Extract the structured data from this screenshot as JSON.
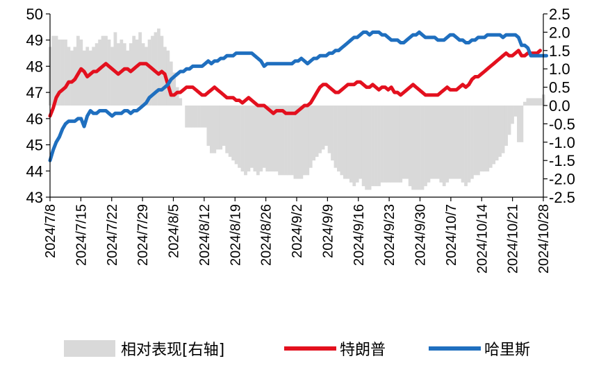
{
  "chart_data": {
    "type": "bar+line",
    "colors": {
      "relative": "#d9d9d9",
      "trump": "#e3101e",
      "harris": "#1f6fbf",
      "axis": "#000000"
    },
    "left_axis": {
      "ylim": [
        43,
        50
      ],
      "ticks": [
        "43",
        "44",
        "45",
        "46",
        "47",
        "48",
        "49",
        "50"
      ]
    },
    "right_axis": {
      "ylim": [
        -2.5,
        2.5
      ],
      "ticks": [
        "-2.5",
        "-2.0",
        "-1.5",
        "-1.0",
        "-0.5",
        "0.0",
        "0.5",
        "1.0",
        "1.5",
        "2.0",
        "2.5"
      ]
    },
    "x_ticks": [
      "2024/7/8",
      "2024/7/15",
      "2024/7/22",
      "2024/7/29",
      "2024/8/5",
      "2024/8/12",
      "2024/8/19",
      "2024/8/26",
      "2024/9/2",
      "2024/9/9",
      "2024/9/16",
      "2024/9/23",
      "2024/9/30",
      "2024/10/7",
      "2024/10/14",
      "2024/10/21",
      "2024/10/28"
    ],
    "legend": [
      "相对表现[右轴]",
      "特朗普",
      "哈里斯"
    ],
    "series": [
      {
        "name": "相对表现[右轴]",
        "axis": "right",
        "style": "bar",
        "values": [
          1.6,
          1.9,
          1.9,
          1.8,
          1.8,
          1.8,
          1.6,
          1.5,
          1.6,
          1.9,
          1.8,
          1.5,
          1.6,
          1.5,
          1.6,
          1.7,
          1.8,
          1.9,
          1.9,
          1.8,
          1.6,
          2.0,
          1.7,
          1.8,
          1.7,
          1.5,
          1.7,
          1.9,
          1.8,
          2.0,
          1.7,
          1.6,
          1.8,
          1.9,
          2.0,
          2.1,
          1.9,
          1.6,
          1.5,
          1.2,
          0.9,
          0.5,
          0.2,
          0,
          -0.6,
          -0.6,
          -0.6,
          -0.6,
          -0.6,
          -0.6,
          -0.6,
          -1.1,
          -1.3,
          -1.3,
          -1.2,
          -1.2,
          -1.1,
          -1.3,
          -1.4,
          -1.5,
          -1.6,
          -1.7,
          -1.8,
          -1.9,
          -1.8,
          -1.7,
          -1.8,
          -1.9,
          -1.8,
          -1.7,
          -1.8,
          -1.8,
          -1.8,
          -1.8,
          -1.9,
          -1.9,
          -1.9,
          -1.9,
          -1.9,
          -2.0,
          -2.0,
          -2.0,
          -1.9,
          -1.9,
          -1.7,
          -1.5,
          -1.4,
          -1.3,
          -1.2,
          -1.1,
          -1.3,
          -1.5,
          -1.7,
          -1.8,
          -1.9,
          -2.0,
          -2.0,
          -2.1,
          -2.2,
          -2.1,
          -2.0,
          -2.2,
          -2.3,
          -2.3,
          -2.2,
          -2.2,
          -2.2,
          -2.1,
          -2.1,
          -2.1,
          -2.1,
          -2.1,
          -2.1,
          -2.1,
          -2.0,
          -2.0,
          -2.2,
          -2.3,
          -2.3,
          -2.3,
          -2.3,
          -2.2,
          -2.1,
          -2.0,
          -2.0,
          -2.0,
          -2.1,
          -2.2,
          -2.1,
          -2.0,
          -2.0,
          -2.0,
          -2.0,
          -2.1,
          -2.2,
          -2.1,
          -2.0,
          -1.9,
          -1.9,
          -1.8,
          -1.8,
          -1.8,
          -1.7,
          -1.6,
          -1.5,
          -1.4,
          -1.3,
          -1.1,
          -0.8,
          -0.5,
          -0.3,
          -1.0,
          -1.0,
          0.1,
          0.2,
          0.2,
          0.2,
          0.2,
          0.2,
          0.3
        ]
      },
      {
        "name": "特朗普",
        "axis": "left",
        "values": [
          46.1,
          46.4,
          46.8,
          47.0,
          47.1,
          47.2,
          47.4,
          47.4,
          47.5,
          47.7,
          47.9,
          47.8,
          47.6,
          47.7,
          47.8,
          47.8,
          47.9,
          48.0,
          48.1,
          48.0,
          47.9,
          47.8,
          47.7,
          47.8,
          47.9,
          47.9,
          47.8,
          47.9,
          48.0,
          48.1,
          48.1,
          48.1,
          48.0,
          47.9,
          47.8,
          47.7,
          47.8,
          47.7,
          47.3,
          46.9,
          46.9,
          47.0,
          47.0,
          47.1,
          47.2,
          47.2,
          47.2,
          47.1,
          47.0,
          46.9,
          46.9,
          47.0,
          47.1,
          47.2,
          47.1,
          47.0,
          46.9,
          46.8,
          46.8,
          46.8,
          46.7,
          46.7,
          46.6,
          46.7,
          46.8,
          46.7,
          46.6,
          46.5,
          46.5,
          46.5,
          46.4,
          46.3,
          46.2,
          46.3,
          46.3,
          46.3,
          46.2,
          46.2,
          46.2,
          46.2,
          46.3,
          46.4,
          46.5,
          46.5,
          46.6,
          46.8,
          47.0,
          47.2,
          47.3,
          47.3,
          47.2,
          47.1,
          47.0,
          47.0,
          47.1,
          47.2,
          47.3,
          47.3,
          47.3,
          47.4,
          47.4,
          47.3,
          47.2,
          47.2,
          47.3,
          47.2,
          47.1,
          47.2,
          47.2,
          47.1,
          47.2,
          47.0,
          47.0,
          46.9,
          47.0,
          47.1,
          47.2,
          47.3,
          47.2,
          47.1,
          47.0,
          46.9,
          46.9,
          46.9,
          46.9,
          46.9,
          47.0,
          47.1,
          47.2,
          47.1,
          47.1,
          47.1,
          47.2,
          47.3,
          47.2,
          47.3,
          47.5,
          47.6,
          47.6,
          47.7,
          47.8,
          47.9,
          48.0,
          48.1,
          48.2,
          48.3,
          48.4,
          48.5,
          48.4,
          48.4,
          48.5,
          48.6,
          48.4,
          48.4,
          48.5,
          48.5,
          48.5,
          48.5,
          48.6
        ]
      },
      {
        "name": "哈里斯",
        "axis": "left",
        "values": [
          44.4,
          44.8,
          45.1,
          45.3,
          45.6,
          45.8,
          45.9,
          45.9,
          45.9,
          46.0,
          46.0,
          45.7,
          46.1,
          46.3,
          46.2,
          46.2,
          46.3,
          46.3,
          46.3,
          46.2,
          46.1,
          46.2,
          46.2,
          46.2,
          46.3,
          46.3,
          46.2,
          46.3,
          46.3,
          46.4,
          46.5,
          46.6,
          46.8,
          46.9,
          47.0,
          47.1,
          47.1,
          47.2,
          47.3,
          47.5,
          47.6,
          47.7,
          47.8,
          47.8,
          47.9,
          47.9,
          48.0,
          48.0,
          48.0,
          48.0,
          48.1,
          48.2,
          48.1,
          48.2,
          48.2,
          48.3,
          48.3,
          48.4,
          48.4,
          48.4,
          48.5,
          48.5,
          48.5,
          48.5,
          48.5,
          48.5,
          48.4,
          48.3,
          48.2,
          48.0,
          48.1,
          48.1,
          48.1,
          48.1,
          48.1,
          48.1,
          48.1,
          48.1,
          48.1,
          48.2,
          48.2,
          48.3,
          48.2,
          48.1,
          48.2,
          48.3,
          48.3,
          48.4,
          48.4,
          48.4,
          48.5,
          48.5,
          48.6,
          48.6,
          48.7,
          48.8,
          48.9,
          49.0,
          49.1,
          49.1,
          49.2,
          49.3,
          49.3,
          49.2,
          49.3,
          49.3,
          49.3,
          49.2,
          49.2,
          49.1,
          49.0,
          49.0,
          49.0,
          48.9,
          48.9,
          49.0,
          49.1,
          49.2,
          49.2,
          49.3,
          49.2,
          49.1,
          49.1,
          49.1,
          49.1,
          49.0,
          49.0,
          49.0,
          49.1,
          49.2,
          49.2,
          49.1,
          49.0,
          49.0,
          48.9,
          48.9,
          49.0,
          49.0,
          49.1,
          49.1,
          49.1,
          49.2,
          49.2,
          49.2,
          49.2,
          49.2,
          49.1,
          49.2,
          49.2,
          49.2,
          49.2,
          49.1,
          48.8,
          48.8,
          48.7,
          48.4,
          48.4,
          48.4,
          48.4,
          48.4,
          48.4
        ]
      }
    ]
  }
}
